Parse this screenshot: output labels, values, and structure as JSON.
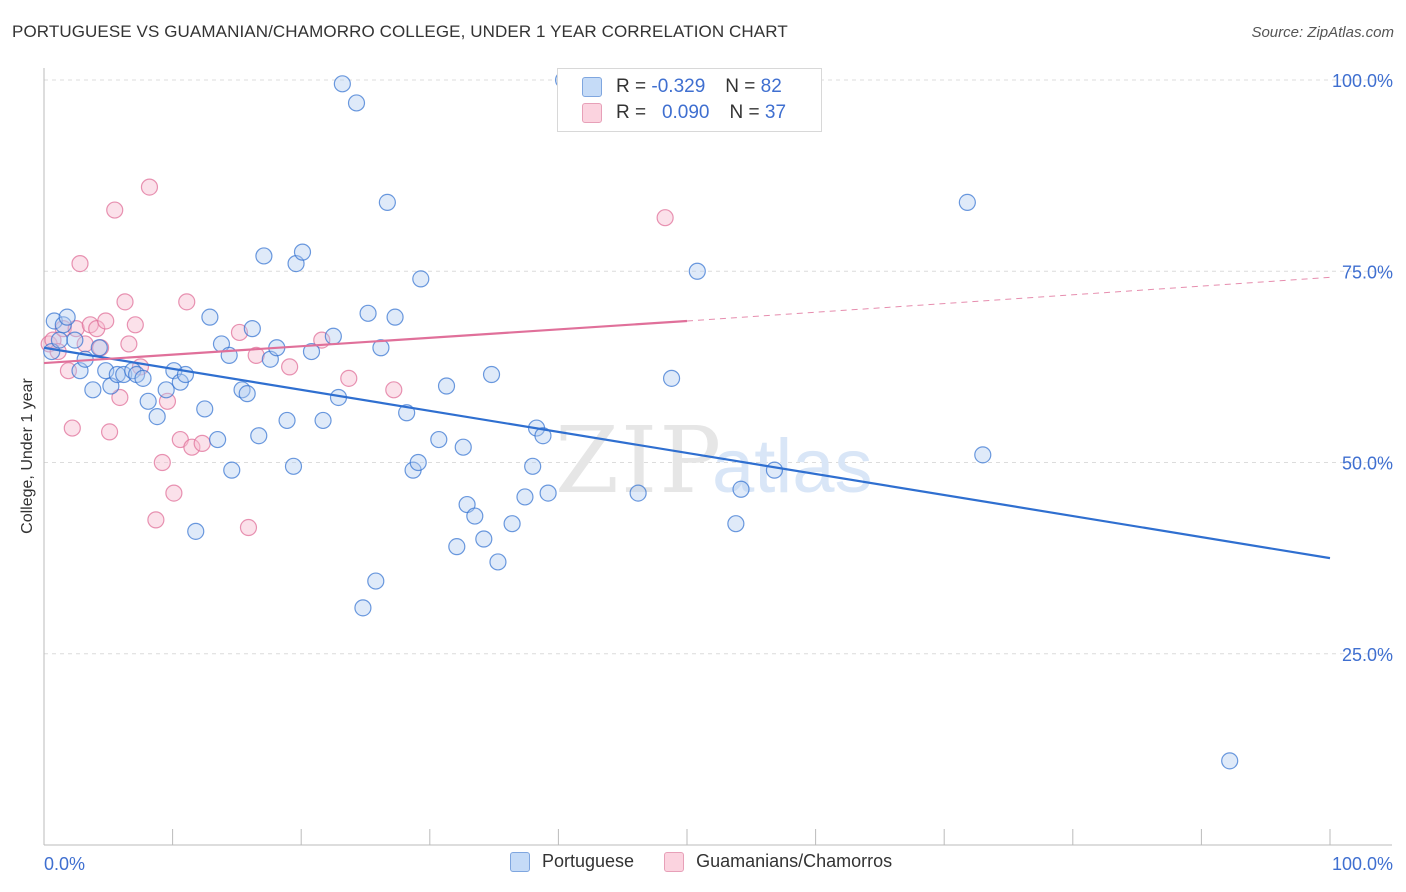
{
  "title": "PORTUGUESE VS GUAMANIAN/CHAMORRO COLLEGE, UNDER 1 YEAR CORRELATION CHART",
  "source": "Source: ZipAtlas.com",
  "watermark": {
    "zip": "ZIP",
    "atlas": "atlas"
  },
  "legend_top": [
    {
      "r_label": "R =",
      "r_value": "-0.329",
      "n_label": "N =",
      "n_value": "82"
    },
    {
      "r_label": "R =",
      "r_value": "0.090",
      "n_label": "N =",
      "n_value": "37"
    }
  ],
  "colors": {
    "blue": "#2f6fd0",
    "blue_fill": "#aecbf0",
    "pink": "#e0709a",
    "pink_fill": "#f7bcd0",
    "value_text": "#3f6fd0"
  },
  "chart_data": {
    "type": "scatter",
    "title": "PORTUGUESE VS GUAMANIAN/CHAMORRO COLLEGE, UNDER 1 YEAR CORRELATION CHART",
    "xlabel": "",
    "ylabel": "College, Under 1 year",
    "xlim": [
      0,
      100
    ],
    "ylim": [
      0,
      100
    ],
    "x_tick_labels": [
      "0.0%",
      "100.0%"
    ],
    "y_tick_labels": [
      "25.0%",
      "50.0%",
      "75.0%",
      "100.0%"
    ],
    "y_ticks": [
      25,
      50,
      75,
      100
    ],
    "grid": true,
    "legend_position": "bottom",
    "series": [
      {
        "name": "Portuguese",
        "color": "#2f6fd0",
        "trend": {
          "x": [
            0,
            100
          ],
          "y": [
            65,
            37.5
          ],
          "style": "solid"
        },
        "points": [
          [
            0.6,
            64.5
          ],
          [
            0.8,
            68.5
          ],
          [
            1.2,
            66
          ],
          [
            1.5,
            68
          ],
          [
            1.8,
            69
          ],
          [
            2.4,
            66
          ],
          [
            2.8,
            62
          ],
          [
            3.2,
            63.5
          ],
          [
            3.8,
            59.5
          ],
          [
            4.3,
            65
          ],
          [
            4.8,
            62
          ],
          [
            5.2,
            60
          ],
          [
            5.7,
            61.5
          ],
          [
            6.2,
            61.5
          ],
          [
            6.9,
            62
          ],
          [
            7.2,
            61.5
          ],
          [
            7.7,
            61
          ],
          [
            8.1,
            58
          ],
          [
            8.8,
            56
          ],
          [
            9.5,
            59.5
          ],
          [
            10.1,
            62
          ],
          [
            10.6,
            60.5
          ],
          [
            11,
            61.5
          ],
          [
            11.8,
            41
          ],
          [
            12.5,
            57
          ],
          [
            12.9,
            69
          ],
          [
            13.5,
            53
          ],
          [
            13.8,
            65.5
          ],
          [
            14.4,
            64
          ],
          [
            14.6,
            49
          ],
          [
            15.4,
            59.5
          ],
          [
            15.8,
            59
          ],
          [
            16.2,
            67.5
          ],
          [
            16.7,
            53.5
          ],
          [
            17.1,
            77
          ],
          [
            17.6,
            63.5
          ],
          [
            18.1,
            65
          ],
          [
            18.9,
            55.5
          ],
          [
            19.4,
            49.5
          ],
          [
            19.6,
            76
          ],
          [
            20.1,
            77.5
          ],
          [
            20.8,
            64.5
          ],
          [
            21.7,
            55.5
          ],
          [
            22.5,
            66.5
          ],
          [
            22.9,
            58.5
          ],
          [
            23.2,
            99.5
          ],
          [
            24.3,
            97
          ],
          [
            24.8,
            31
          ],
          [
            25.2,
            69.5
          ],
          [
            25.8,
            34.5
          ],
          [
            26.2,
            65
          ],
          [
            26.7,
            84
          ],
          [
            27.3,
            69
          ],
          [
            28.2,
            56.5
          ],
          [
            28.7,
            49
          ],
          [
            29.1,
            50
          ],
          [
            29.3,
            74
          ],
          [
            30.7,
            53
          ],
          [
            31.3,
            60
          ],
          [
            32.1,
            39
          ],
          [
            32.6,
            52
          ],
          [
            32.9,
            44.5
          ],
          [
            33.5,
            43
          ],
          [
            34.2,
            40
          ],
          [
            34.8,
            61.5
          ],
          [
            35.3,
            37
          ],
          [
            36.4,
            42
          ],
          [
            37.4,
            45.5
          ],
          [
            38,
            49.5
          ],
          [
            38.3,
            54.5
          ],
          [
            38.8,
            53.5
          ],
          [
            39.2,
            46
          ],
          [
            40.4,
            100
          ],
          [
            46.2,
            46
          ],
          [
            48.8,
            61
          ],
          [
            50.8,
            75
          ],
          [
            53.8,
            42
          ],
          [
            54.2,
            46.5
          ],
          [
            56.8,
            49
          ],
          [
            71.8,
            84
          ],
          [
            73,
            51
          ],
          [
            92.2,
            11
          ]
        ]
      },
      {
        "name": "Guamanians/Chamorros",
        "color": "#e0709a",
        "trend": {
          "x": [
            0,
            50,
            100
          ],
          "y": [
            63,
            68.5,
            74.2
          ],
          "solid_until": 50
        },
        "points": [
          [
            0.4,
            65.5
          ],
          [
            0.7,
            66
          ],
          [
            1.1,
            64.5
          ],
          [
            1.5,
            67.5
          ],
          [
            1.9,
            62
          ],
          [
            2.2,
            54.5
          ],
          [
            2.5,
            67.5
          ],
          [
            2.8,
            76
          ],
          [
            3.2,
            65.5
          ],
          [
            3.6,
            68
          ],
          [
            4.1,
            67.5
          ],
          [
            4.4,
            65
          ],
          [
            4.8,
            68.5
          ],
          [
            5.1,
            54
          ],
          [
            5.5,
            83
          ],
          [
            5.9,
            58.5
          ],
          [
            6.3,
            71
          ],
          [
            6.6,
            65.5
          ],
          [
            7.1,
            68
          ],
          [
            7.5,
            62.5
          ],
          [
            8.2,
            86
          ],
          [
            8.7,
            42.5
          ],
          [
            9.2,
            50
          ],
          [
            9.6,
            58
          ],
          [
            10.1,
            46
          ],
          [
            10.6,
            53
          ],
          [
            11.1,
            71
          ],
          [
            11.5,
            52
          ],
          [
            12.3,
            52.5
          ],
          [
            15.2,
            67
          ],
          [
            15.9,
            41.5
          ],
          [
            16.5,
            64
          ],
          [
            19.1,
            62.5
          ],
          [
            21.6,
            66
          ],
          [
            23.7,
            61
          ],
          [
            27.2,
            59.5
          ],
          [
            48.3,
            82
          ]
        ]
      }
    ]
  },
  "legend_bottom": [
    {
      "label": "Portuguese"
    },
    {
      "label": "Guamanians/Chamorros"
    }
  ]
}
